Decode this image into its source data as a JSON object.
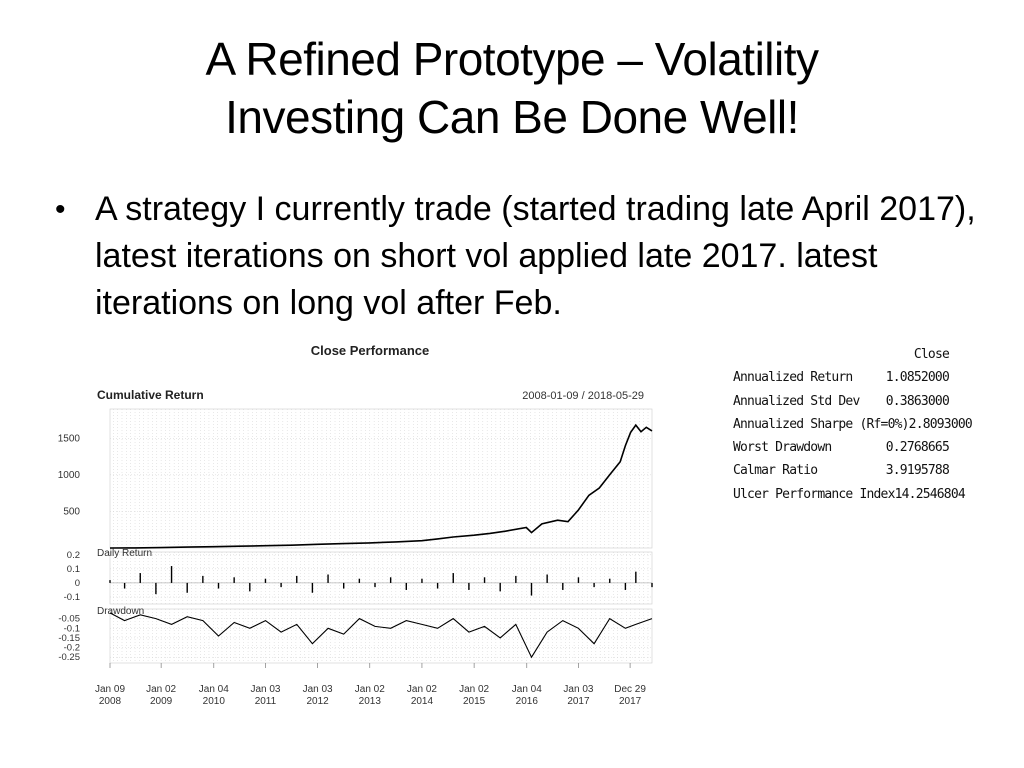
{
  "slide": {
    "title_line1": "A Refined Prototype – Volatility",
    "title_line2": "Investing Can Be Done Well!",
    "bullet": "A strategy I currently trade (started trading late April 2017), latest iterations on short vol applied late 2017. latest iterations on long vol after Feb."
  },
  "stats_table": {
    "column_header": "Close",
    "rows": [
      {
        "label": "Annualized Return",
        "value": "1.0852000"
      },
      {
        "label": "Annualized Std Dev",
        "value": "0.3863000"
      },
      {
        "label": "Annualized Sharpe (Rf=0%)",
        "value": "2.8093000"
      },
      {
        "label": "Worst Drawdown",
        "value": "0.2768665"
      },
      {
        "label": "Calmar Ratio",
        "value": "3.9195788"
      },
      {
        "label": "Ulcer Performance Index",
        "value": "14.2546804"
      }
    ]
  },
  "chart_data": {
    "type": "line",
    "title": "Close Performance",
    "date_range": "2008-01-09 / 2018-05-29",
    "x_tick_labels": [
      "Jan 09\n2008",
      "Jan 02\n2009",
      "Jan 04\n2010",
      "Jan 03\n2011",
      "Jan 03\n2012",
      "Jan 02\n2013",
      "Jan 02\n2014",
      "Jan 02\n2015",
      "Jan 04\n2016",
      "Jan 03\n2017",
      "Dec 29\n2017"
    ],
    "x_tick_years": [
      2008.02,
      2009.0,
      2010.01,
      2011.0,
      2012.0,
      2013.0,
      2014.0,
      2015.0,
      2016.01,
      2017.0,
      2017.99
    ],
    "x_range": [
      2008.02,
      2018.41
    ],
    "panels": [
      {
        "name": "Cumulative Return",
        "ylim": [
          0,
          1900
        ],
        "yticks": [
          500,
          1000,
          1500
        ],
        "x": [
          2008.02,
          2008.5,
          2009.0,
          2009.5,
          2010.0,
          2010.5,
          2011.0,
          2011.5,
          2012.0,
          2012.5,
          2013.0,
          2013.5,
          2014.0,
          2014.3,
          2014.6,
          2015.0,
          2015.3,
          2015.6,
          2016.0,
          2016.1,
          2016.3,
          2016.6,
          2016.8,
          2017.0,
          2017.2,
          2017.4,
          2017.6,
          2017.8,
          2017.9,
          2018.0,
          2018.1,
          2018.2,
          2018.3,
          2018.41
        ],
        "y": [
          0,
          2,
          6,
          12,
          18,
          24,
          32,
          38,
          50,
          60,
          70,
          84,
          100,
          125,
          150,
          175,
          200,
          230,
          280,
          210,
          330,
          380,
          360,
          520,
          720,
          820,
          1000,
          1180,
          1400,
          1580,
          1680,
          1590,
          1650,
          1600
        ]
      },
      {
        "name": "Daily Return",
        "ylim": [
          -0.15,
          0.22
        ],
        "yticks": [
          0.2,
          0.1,
          0.0,
          -0.1
        ],
        "x": [
          2008.02,
          2008.3,
          2008.6,
          2008.9,
          2009.2,
          2009.5,
          2009.8,
          2010.1,
          2010.4,
          2010.7,
          2011.0,
          2011.3,
          2011.6,
          2011.9,
          2012.2,
          2012.5,
          2012.8,
          2013.1,
          2013.4,
          2013.7,
          2014.0,
          2014.3,
          2014.6,
          2014.9,
          2015.2,
          2015.5,
          2015.8,
          2016.1,
          2016.4,
          2016.7,
          2017.0,
          2017.3,
          2017.6,
          2017.9,
          2018.1,
          2018.41
        ],
        "y": [
          0.02,
          -0.04,
          0.07,
          -0.08,
          0.12,
          -0.07,
          0.05,
          -0.04,
          0.04,
          -0.06,
          0.03,
          -0.03,
          0.05,
          -0.07,
          0.06,
          -0.04,
          0.03,
          -0.03,
          0.04,
          -0.05,
          0.03,
          -0.04,
          0.07,
          -0.05,
          0.04,
          -0.06,
          0.05,
          -0.09,
          0.06,
          -0.05,
          0.04,
          -0.03,
          0.03,
          -0.05,
          0.08,
          -0.03
        ]
      },
      {
        "name": "Drawdown",
        "ylim": [
          -0.28,
          0.0
        ],
        "yticks": [
          -0.05,
          -0.1,
          -0.15,
          -0.2,
          -0.25
        ],
        "x": [
          2008.02,
          2008.3,
          2008.6,
          2008.9,
          2009.2,
          2009.5,
          2009.8,
          2010.1,
          2010.4,
          2010.7,
          2011.0,
          2011.3,
          2011.6,
          2011.9,
          2012.2,
          2012.5,
          2012.8,
          2013.1,
          2013.4,
          2013.7,
          2014.0,
          2014.3,
          2014.6,
          2014.9,
          2015.2,
          2015.5,
          2015.8,
          2016.1,
          2016.4,
          2016.7,
          2017.0,
          2017.3,
          2017.6,
          2017.9,
          2018.1,
          2018.41
        ],
        "y": [
          -0.02,
          -0.06,
          -0.03,
          -0.05,
          -0.08,
          -0.04,
          -0.06,
          -0.14,
          -0.07,
          -0.1,
          -0.06,
          -0.12,
          -0.08,
          -0.18,
          -0.1,
          -0.13,
          -0.05,
          -0.09,
          -0.1,
          -0.06,
          -0.08,
          -0.1,
          -0.05,
          -0.12,
          -0.09,
          -0.15,
          -0.08,
          -0.25,
          -0.12,
          -0.06,
          -0.1,
          -0.18,
          -0.05,
          -0.1,
          -0.08,
          -0.05
        ]
      }
    ]
  }
}
